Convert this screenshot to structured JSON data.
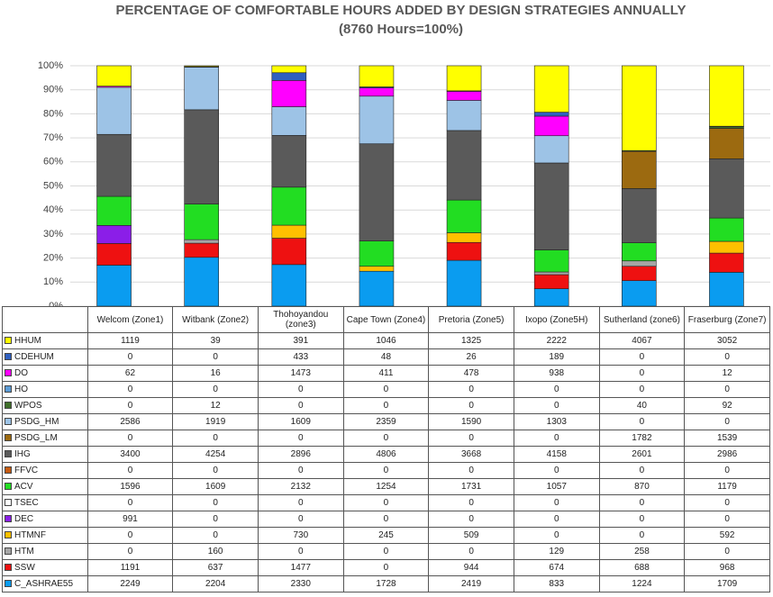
{
  "chart_data": {
    "type": "bar",
    "stacking": "percent",
    "title": "PERCENTAGE OF COMFORTABLE HOURS ADDED BY DESIGN STRATEGIES ANNUALLY",
    "subtitle": "(8760 Hours=100%)",
    "categories": [
      "Welcom (Zone1)",
      "Witbank (Zone2)",
      "Thohoyandou (zone3)",
      "Cape Town (Zone4)",
      "Pretoria (Zone5)",
      "Ixopo (Zone5H)",
      "Sutherland (zone6)",
      "Fraserburg (Zone7)"
    ],
    "ylim": [
      0,
      100
    ],
    "yticks": [
      {
        "value": 0,
        "label": "0%"
      },
      {
        "value": 10,
        "label": "10%"
      },
      {
        "value": 20,
        "label": "20%"
      },
      {
        "value": 30,
        "label": "30%"
      },
      {
        "value": 40,
        "label": "40%"
      },
      {
        "value": 50,
        "label": "50%"
      },
      {
        "value": 60,
        "label": "60%"
      },
      {
        "value": 70,
        "label": "70%"
      },
      {
        "value": 80,
        "label": "80%"
      },
      {
        "value": 90,
        "label": "90%"
      },
      {
        "value": 100,
        "label": "100%"
      }
    ],
    "grid": true,
    "series": [
      {
        "name": "HHUM",
        "color": "#ffff00",
        "values": [
          1119,
          39,
          391,
          1046,
          1325,
          2222,
          4067,
          3052
        ]
      },
      {
        "name": "CDEHUM",
        "color": "#2f5fbf",
        "values": [
          0,
          0,
          433,
          48,
          26,
          189,
          0,
          0
        ]
      },
      {
        "name": "DO",
        "color": "#ff00ff",
        "values": [
          62,
          16,
          1473,
          411,
          478,
          938,
          0,
          12
        ]
      },
      {
        "name": "HO",
        "color": "#5b9bd5",
        "values": [
          0,
          0,
          0,
          0,
          0,
          0,
          0,
          0
        ]
      },
      {
        "name": "WPOS",
        "color": "#3f6f2a",
        "values": [
          0,
          12,
          0,
          0,
          0,
          0,
          40,
          92
        ]
      },
      {
        "name": "PSDG_HM",
        "color": "#9dc3e6",
        "values": [
          2586,
          1919,
          1609,
          2359,
          1590,
          1303,
          0,
          0
        ]
      },
      {
        "name": "PSDG_LM",
        "color": "#9c6a10",
        "values": [
          0,
          0,
          0,
          0,
          0,
          0,
          1782,
          1539
        ]
      },
      {
        "name": "IHG",
        "color": "#5a5a5a",
        "values": [
          3400,
          4254,
          2896,
          4806,
          3668,
          4158,
          2601,
          2986
        ]
      },
      {
        "name": "FFVC",
        "color": "#c55a11",
        "values": [
          0,
          0,
          0,
          0,
          0,
          0,
          0,
          0
        ]
      },
      {
        "name": "ACV",
        "color": "#22dd22",
        "values": [
          1596,
          1609,
          2132,
          1254,
          1731,
          1057,
          870,
          1179
        ]
      },
      {
        "name": "TSEC",
        "color": "#ffffff",
        "values": [
          0,
          0,
          0,
          0,
          0,
          0,
          0,
          0
        ]
      },
      {
        "name": "DEC",
        "color": "#8b1ee8",
        "values": [
          991,
          0,
          0,
          0,
          0,
          0,
          0,
          0
        ]
      },
      {
        "name": "HTMNF",
        "color": "#ffc000",
        "values": [
          0,
          0,
          730,
          245,
          509,
          0,
          0,
          592
        ]
      },
      {
        "name": "HTM",
        "color": "#a6a6a6",
        "values": [
          0,
          160,
          0,
          0,
          0,
          129,
          258,
          0
        ]
      },
      {
        "name": "SSW",
        "color": "#ee1111",
        "values": [
          1191,
          637,
          1477,
          0,
          944,
          674,
          688,
          968
        ]
      },
      {
        "name": "C_ASHRAE55",
        "color": "#0a9cf0",
        "values": [
          2249,
          2204,
          2330,
          1728,
          2419,
          833,
          1224,
          1709
        ]
      }
    ]
  }
}
